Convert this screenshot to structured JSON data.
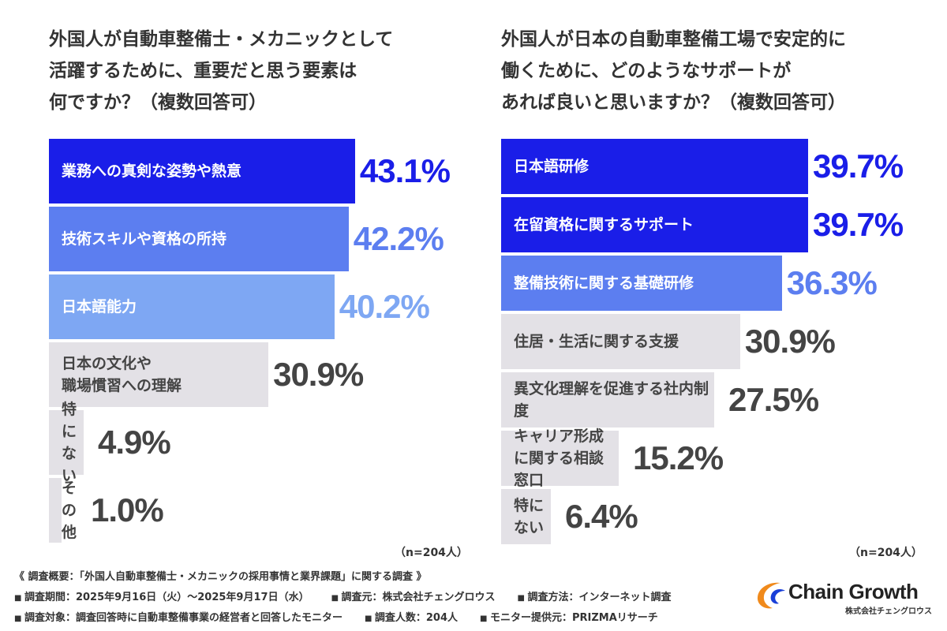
{
  "chart_data": [
    {
      "type": "bar",
      "orientation": "horizontal",
      "title": "外国人が自動車整備士・メカニックとして\n活躍するために、重要だと思う要素は\n何ですか？（複数回答可）",
      "categories": [
        "業務への真剣な姿勢や熱意",
        "技術スキルや資格の所持",
        "日本語能力",
        "日本の文化や\n職場慣習への理解",
        "特にない",
        "その他"
      ],
      "values": [
        43.1,
        42.2,
        40.2,
        30.9,
        4.9,
        1.0
      ],
      "value_labels": [
        "43.1%",
        "42.2%",
        "40.2%",
        "30.9%",
        "4.9%",
        "1.0%"
      ],
      "bar_colors": [
        "#1a1ee8",
        "#5c7ef0",
        "#7ea7f3",
        "#e3e1e6",
        "#e3e1e6",
        "#e3e1e6"
      ],
      "label_colors": [
        "#ffffff",
        "#ffffff",
        "#ffffff",
        "#444444",
        "#444444",
        "#444444"
      ],
      "value_colors": [
        "#1a1ee8",
        "#5c7ef0",
        "#7ea7f3",
        "#444444",
        "#444444",
        "#444444"
      ],
      "n_label": "（n=204人）",
      "grid": false
    },
    {
      "type": "bar",
      "orientation": "horizontal",
      "title": "外国人が日本の自動車整備工場で安定的に\n働くために、どのようなサポートが\nあれば良いと思いますか？（複数回答可）",
      "categories": [
        "日本語研修",
        "在留資格に関するサポート",
        "整備技術に関する基礎研修",
        "住居・生活に関する支援",
        "異文化理解を促進する社内制度",
        "キャリア形成に関する相談窓口",
        "特にない"
      ],
      "values": [
        39.7,
        39.7,
        36.3,
        30.9,
        27.5,
        15.2,
        6.4
      ],
      "value_labels": [
        "39.7%",
        "39.7%",
        "36.3%",
        "30.9%",
        "27.5%",
        "15.2%",
        "6.4%"
      ],
      "bar_colors": [
        "#1a1ee8",
        "#1a1ee8",
        "#5c7ef0",
        "#e3e1e6",
        "#e3e1e6",
        "#e3e1e6",
        "#e3e1e6"
      ],
      "label_colors": [
        "#ffffff",
        "#ffffff",
        "#ffffff",
        "#444444",
        "#444444",
        "#444444",
        "#444444"
      ],
      "value_colors": [
        "#1a1ee8",
        "#1a1ee8",
        "#5c7ef0",
        "#444444",
        "#444444",
        "#444444",
        "#444444"
      ],
      "n_label": "（n=204人）",
      "grid": false
    }
  ],
  "footer": {
    "overview": "《 調査概要：「外国人自動車整備士・メカニックの採用事情と業界課題」に関する調査 》",
    "line1": [
      "調査期間：2025年9月16日（火）〜2025年9月17日（水）",
      "調査元：株式会社チェングロウス",
      "調査方法：インターネット調査"
    ],
    "line2": [
      "調査対象：調査回答時に自動車整備事業の経営者と回答したモニター",
      "調査人数：204人",
      "モニター提供元：PRIZMAリサーチ"
    ]
  },
  "logo": {
    "name": "Chain Growth",
    "sub": "株式会社チェングロウス",
    "colors": {
      "orange": "#f08a1c",
      "blue": "#1a3fd8",
      "dark": "#222222"
    },
    "icon": "chain-growth-swoosh-icon"
  }
}
